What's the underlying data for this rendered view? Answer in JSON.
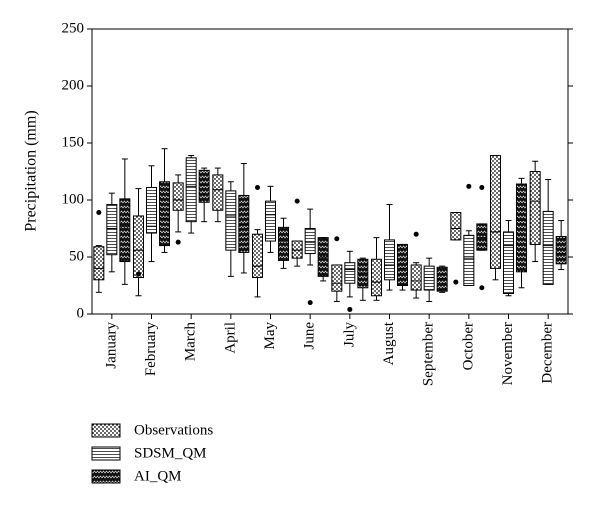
{
  "chart_data": {
    "type": "box",
    "y_label": "Precipitation (mm)",
    "categories": [
      "January",
      "February",
      "March",
      "April",
      "May",
      "June",
      "July",
      "August",
      "September",
      "October",
      "November",
      "December"
    ],
    "ylim": [
      0,
      250
    ],
    "yticks": [
      0,
      50,
      100,
      150,
      200,
      250
    ],
    "series": [
      {
        "name": "Observations",
        "pattern": "dots",
        "values": [
          {
            "min": 19,
            "q1": 30,
            "median": 40,
            "q3": 59,
            "max": 60,
            "outliers": [
              89
            ]
          },
          {
            "min": 16,
            "q1": 32,
            "median": 56,
            "q3": 86,
            "max": 110,
            "outliers": [
              35
            ]
          },
          {
            "min": 72,
            "q1": 91,
            "median": 100,
            "q3": 115,
            "max": 122,
            "outliers": [
              63
            ]
          },
          {
            "min": 81,
            "q1": 91,
            "median": 109,
            "q3": 122,
            "max": 128,
            "outliers": []
          },
          {
            "min": 15,
            "q1": 32,
            "median": 42,
            "q3": 70,
            "max": 74,
            "outliers": [
              111
            ]
          },
          {
            "min": 42,
            "q1": 49,
            "median": 56,
            "q3": 64,
            "max": 64,
            "outliers": [
              99
            ]
          },
          {
            "min": 11,
            "q1": 20,
            "median": 27,
            "q3": 43,
            "max": 43,
            "outliers": [
              66
            ]
          },
          {
            "min": 12,
            "q1": 16,
            "median": 28,
            "q3": 48,
            "max": 67,
            "outliers": []
          },
          {
            "min": 14,
            "q1": 21,
            "median": 29,
            "q3": 43,
            "max": 45,
            "outliers": [
              70
            ]
          },
          {
            "min": 65,
            "q1": 65,
            "median": 75,
            "q3": 89,
            "max": 89,
            "outliers": [
              28
            ]
          },
          {
            "min": 30,
            "q1": 40,
            "median": 72,
            "q3": 139,
            "max": 139,
            "outliers": []
          },
          {
            "min": 46,
            "q1": 61,
            "median": 99,
            "q3": 125,
            "max": 134,
            "outliers": []
          }
        ]
      },
      {
        "name": "SDSM_QM",
        "pattern": "lines",
        "values": [
          {
            "min": 37,
            "q1": 52,
            "median": 75,
            "q3": 96,
            "max": 106,
            "outliers": []
          },
          {
            "min": 46,
            "q1": 71,
            "median": 77,
            "q3": 111,
            "max": 130,
            "outliers": []
          },
          {
            "min": 71,
            "q1": 81,
            "median": 112,
            "q3": 137,
            "max": 139,
            "outliers": []
          },
          {
            "min": 33,
            "q1": 56,
            "median": 86,
            "q3": 108,
            "max": 116,
            "outliers": []
          },
          {
            "min": 54,
            "q1": 64,
            "median": 87,
            "q3": 99,
            "max": 112,
            "outliers": []
          },
          {
            "min": 43,
            "q1": 53,
            "median": 63,
            "q3": 75,
            "max": 92,
            "outliers": [
              10
            ]
          },
          {
            "min": 15,
            "q1": 27,
            "median": 39,
            "q3": 45,
            "max": 55,
            "outliers": [
              4
            ]
          },
          {
            "min": 21,
            "q1": 30,
            "median": 43,
            "q3": 65,
            "max": 96,
            "outliers": []
          },
          {
            "min": 11,
            "q1": 21,
            "median": 32,
            "q3": 42,
            "max": 49,
            "outliers": []
          },
          {
            "min": 25,
            "q1": 25,
            "median": 49,
            "q3": 69,
            "max": 73,
            "outliers": [
              112
            ]
          },
          {
            "min": 16,
            "q1": 18,
            "median": 60,
            "q3": 72,
            "max": 82,
            "outliers": []
          },
          {
            "min": 26,
            "q1": 26,
            "median": 60,
            "q3": 90,
            "max": 118,
            "outliers": []
          }
        ]
      },
      {
        "name": "AI_QM",
        "pattern": "zigzag",
        "values": [
          {
            "min": 26,
            "q1": 46,
            "median": 77,
            "q3": 101,
            "max": 136,
            "outliers": []
          },
          {
            "min": 54,
            "q1": 60,
            "median": 84,
            "q3": 116,
            "max": 145,
            "outliers": []
          },
          {
            "min": 81,
            "q1": 98,
            "median": 113,
            "q3": 126,
            "max": 128,
            "outliers": []
          },
          {
            "min": 36,
            "q1": 54,
            "median": 78,
            "q3": 104,
            "max": 132,
            "outliers": []
          },
          {
            "min": 40,
            "q1": 47,
            "median": 64,
            "q3": 76,
            "max": 84,
            "outliers": []
          },
          {
            "min": 29,
            "q1": 33,
            "median": 50,
            "q3": 67,
            "max": 67,
            "outliers": []
          },
          {
            "min": 12,
            "q1": 23,
            "median": 36,
            "q3": 48,
            "max": 49,
            "outliers": []
          },
          {
            "min": 21,
            "q1": 25,
            "median": 40,
            "q3": 61,
            "max": 61,
            "outliers": []
          },
          {
            "min": 19,
            "q1": 20,
            "median": 31,
            "q3": 41,
            "max": 42,
            "outliers": []
          },
          {
            "min": 56,
            "q1": 56,
            "median": 67,
            "q3": 79,
            "max": 79,
            "outliers": [
              111,
              23
            ]
          },
          {
            "min": 23,
            "q1": 37,
            "median": 82,
            "q3": 114,
            "max": 119,
            "outliers": []
          },
          {
            "min": 39,
            "q1": 44,
            "median": 53,
            "q3": 68,
            "max": 82,
            "outliers": []
          }
        ]
      }
    ]
  }
}
